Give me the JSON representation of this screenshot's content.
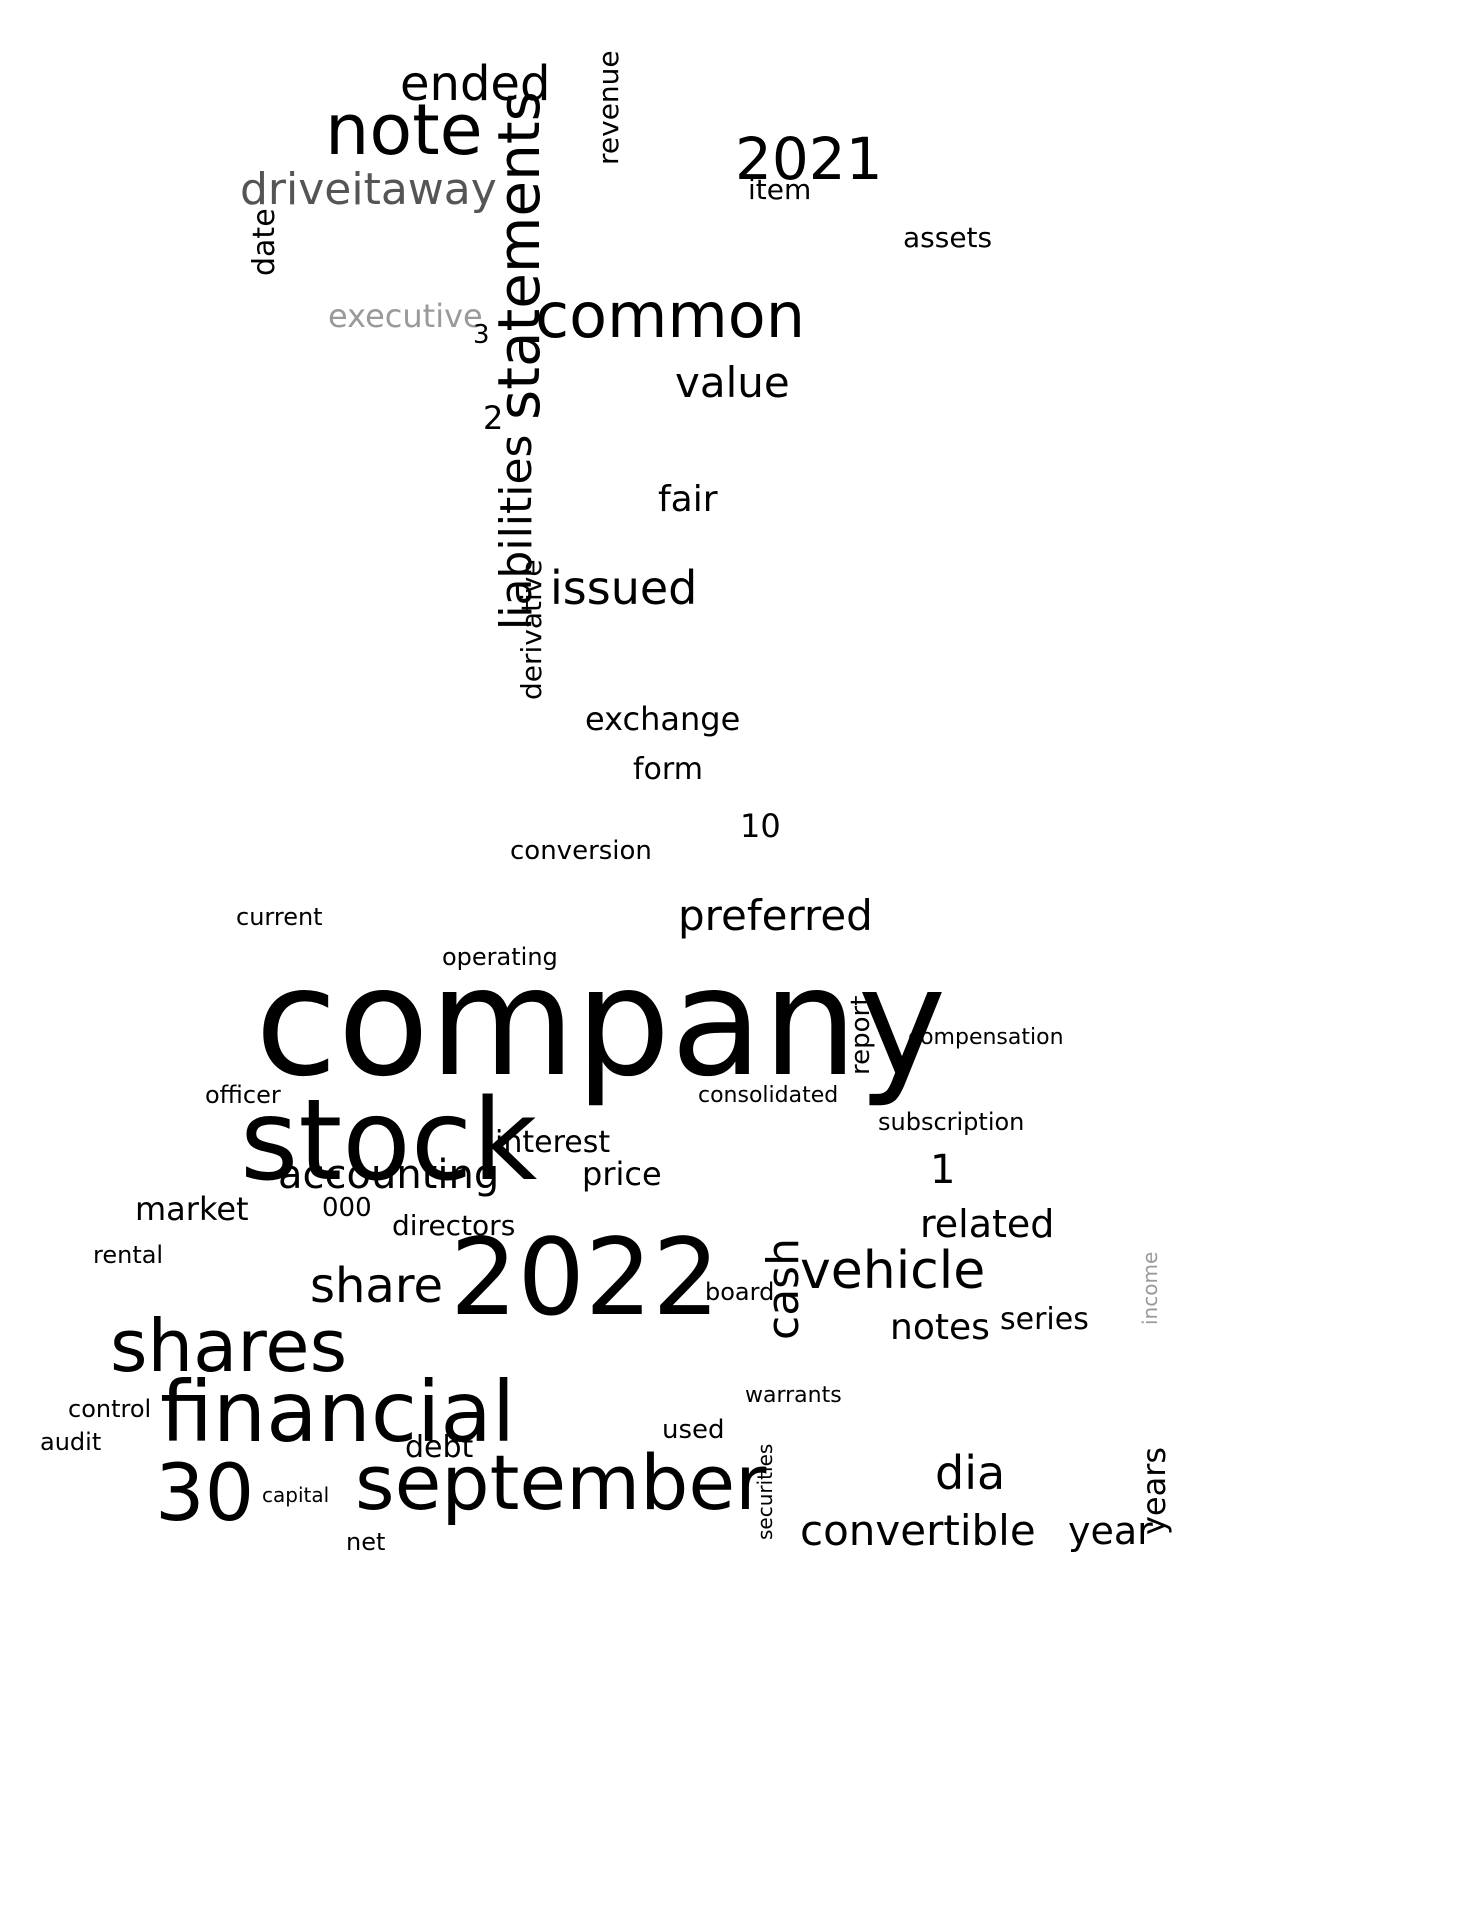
{
  "colors": {
    "background": "#ffffff",
    "text": "#000000",
    "gray_dark": "#555555",
    "gray_light": "#9a9a9a"
  },
  "words": {
    "company": "company",
    "stock": "stock",
    "financial": "financial",
    "september": "september",
    "y2022": "2022",
    "shares": "shares",
    "n30": "30",
    "note": "note",
    "common": "common",
    "statements": "statements",
    "liabilities": "liabilities",
    "driveitaway": "driveitaway",
    "y2021": "2021",
    "ended": "ended",
    "value": "value",
    "issued": "issued",
    "vehicle": "vehicle",
    "convertible": "convertible",
    "dia": "dia",
    "share": "share",
    "accounting": "accounting",
    "preferred": "preferred",
    "exchange": "exchange",
    "fair": "fair",
    "executive": "executive",
    "year": "year",
    "years": "years",
    "related": "related",
    "notes": "notes",
    "cash": "cash",
    "debt": "debt",
    "market": "market",
    "price": "price",
    "interest": "interest",
    "directors": "directors",
    "conversion": "conversion",
    "assets": "assets",
    "item": "item",
    "revenue": "revenue",
    "date": "date",
    "derivative": "derivative",
    "form": "form",
    "audit": "audit",
    "control": "control",
    "series": "series",
    "n1": "1",
    "n10": "10",
    "n2": "2",
    "n3": "3",
    "n000": "000",
    "rental": "rental",
    "officer": "officer",
    "current": "current",
    "operating": "operating",
    "consolidated": "consolidated",
    "subscription": "subscription",
    "compensation": "compensation",
    "report": "report",
    "board": "board",
    "capital": "capital",
    "net": "net",
    "used": "used",
    "warrants": "warrants",
    "securities": "securities",
    "income": "income"
  }
}
